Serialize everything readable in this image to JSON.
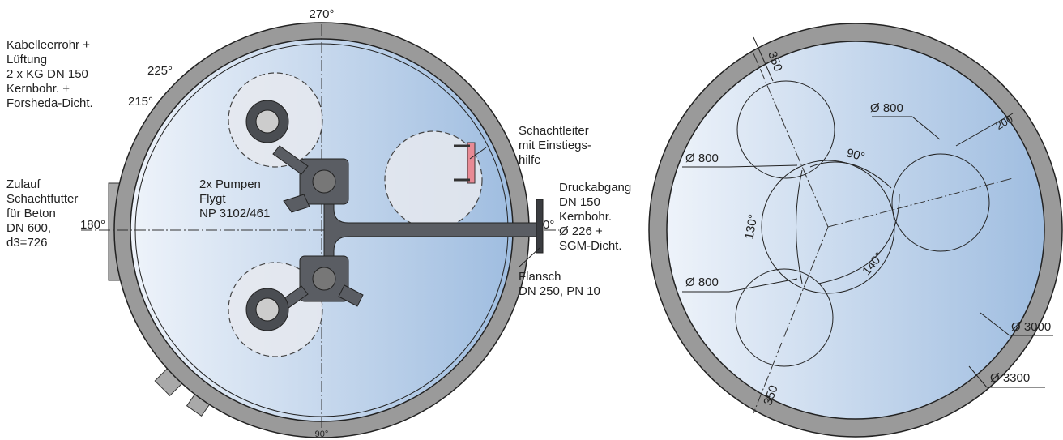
{
  "left_plan": {
    "angle_top": "270°",
    "angle_bottom": "90°",
    "angle_left": "180°",
    "angle_right": "0°",
    "angle_225": "225°",
    "angle_215": "215°",
    "cable_note": [
      "Kabelleerrohr +",
      "Lüftung",
      "2 x KG DN 150",
      "Kernbohr. +",
      "Forsheda-Dicht."
    ],
    "inlet_note": [
      "Zulauf",
      "Schachtfutter",
      "für Beton",
      "DN 600,",
      "d3=726"
    ],
    "pump_note": [
      "2x Pumpen",
      "Flygt",
      "NP 3102/461"
    ],
    "ladder_note": [
      "Schachtleiter",
      "mit Einstiegs-",
      "hilfe"
    ],
    "outlet_note": [
      "Druckabgang",
      "DN 150",
      "Kernbohr.",
      "Ø 226 +",
      "SGM-Dicht."
    ],
    "flange_note": [
      "Flansch",
      "DN 250, PN 10"
    ]
  },
  "right_plan": {
    "dim_top": "350",
    "dim_bottom": "350",
    "pump_dia_1": "Ø 800",
    "pump_dia_2": "Ø 800",
    "pump_dia_3": "Ø 800",
    "clearance": "200",
    "angle_90": "90°",
    "angle_130": "130°",
    "angle_140": "140°",
    "inner_dia": "Ø 3000",
    "outer_dia": "Ø 3300"
  }
}
